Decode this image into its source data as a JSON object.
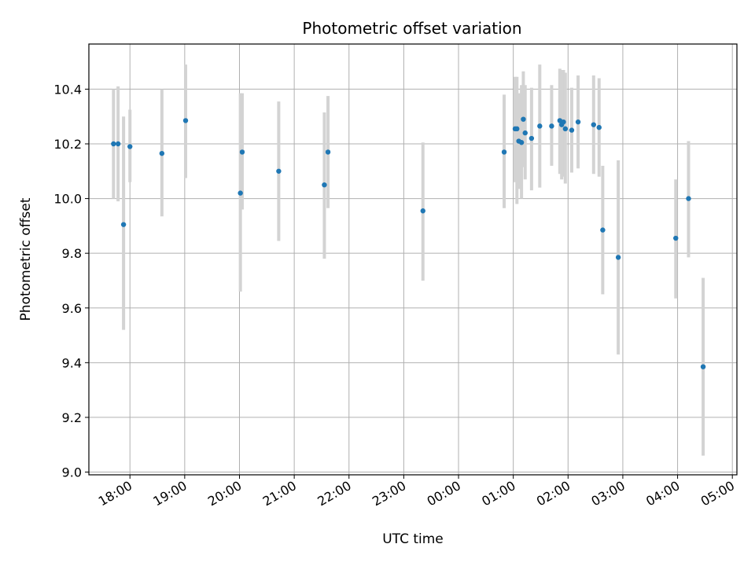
{
  "chart_data": {
    "type": "scatter",
    "title": "Photometric offset variation",
    "xlabel": "UTC time",
    "ylabel": "Photometric offset",
    "ylim": [
      8.99,
      10.565
    ],
    "xlim": [
      "17:15",
      "05:05"
    ],
    "grid": true,
    "x_ticks": [
      "18:00",
      "19:00",
      "20:00",
      "21:00",
      "22:00",
      "23:00",
      "00:00",
      "01:00",
      "02:00",
      "03:00",
      "04:00",
      "05:00"
    ],
    "y_ticks": [
      "9.0",
      "9.2",
      "9.4",
      "9.6",
      "9.8",
      "10.0",
      "10.2",
      "10.4"
    ],
    "marker_color": "#1f77b4",
    "errorbar_color": "#d3d3d3",
    "points": [
      {
        "x": "17:42",
        "y": 10.2,
        "err_low": 10.0,
        "err_high": 10.4
      },
      {
        "x": "17:47",
        "y": 10.2,
        "err_low": 9.99,
        "err_high": 10.41
      },
      {
        "x": "17:53",
        "y": 9.905,
        "err_low": 9.52,
        "err_high": 10.3
      },
      {
        "x": "18:00",
        "y": 10.19,
        "err_low": 10.06,
        "err_high": 10.325
      },
      {
        "x": "18:35",
        "y": 10.165,
        "err_low": 9.935,
        "err_high": 10.4
      },
      {
        "x": "19:01",
        "y": 10.285,
        "err_low": 10.075,
        "err_high": 10.49
      },
      {
        "x": "20:01",
        "y": 10.02,
        "err_low": 9.66,
        "err_high": 10.385
      },
      {
        "x": "20:03",
        "y": 10.17,
        "err_low": 9.96,
        "err_high": 10.385
      },
      {
        "x": "20:43",
        "y": 10.1,
        "err_low": 9.845,
        "err_high": 10.355
      },
      {
        "x": "21:33",
        "y": 10.05,
        "err_low": 9.78,
        "err_high": 10.315
      },
      {
        "x": "21:37",
        "y": 10.17,
        "err_low": 9.965,
        "err_high": 10.375
      },
      {
        "x": "23:21",
        "y": 9.955,
        "err_low": 9.7,
        "err_high": 10.205
      },
      {
        "x": "00:50",
        "y": 10.17,
        "err_low": 9.965,
        "err_high": 10.38
      },
      {
        "x": "01:02",
        "y": 10.255,
        "err_low": 10.06,
        "err_high": 10.445
      },
      {
        "x": "01:04",
        "y": 10.255,
        "err_low": 9.98,
        "err_high": 10.445
      },
      {
        "x": "01:06",
        "y": 10.21,
        "err_low": 10.035,
        "err_high": 10.385
      },
      {
        "x": "01:09",
        "y": 10.205,
        "err_low": 10.0,
        "err_high": 10.415
      },
      {
        "x": "01:11",
        "y": 10.29,
        "err_low": 10.115,
        "err_high": 10.465
      },
      {
        "x": "01:13",
        "y": 10.24,
        "err_low": 10.07,
        "err_high": 10.415
      },
      {
        "x": "01:20",
        "y": 10.22,
        "err_low": 10.03,
        "err_high": 10.405
      },
      {
        "x": "01:29",
        "y": 10.265,
        "err_low": 10.04,
        "err_high": 10.49
      },
      {
        "x": "01:42",
        "y": 10.265,
        "err_low": 10.12,
        "err_high": 10.415
      },
      {
        "x": "01:51",
        "y": 10.285,
        "err_low": 10.09,
        "err_high": 10.475
      },
      {
        "x": "01:53",
        "y": 10.27,
        "err_low": 10.07,
        "err_high": 10.47
      },
      {
        "x": "01:55",
        "y": 10.28,
        "err_low": 10.08,
        "err_high": 10.47
      },
      {
        "x": "01:57",
        "y": 10.255,
        "err_low": 10.055,
        "err_high": 10.46
      },
      {
        "x": "02:04",
        "y": 10.25,
        "err_low": 10.095,
        "err_high": 10.405
      },
      {
        "x": "02:11",
        "y": 10.28,
        "err_low": 10.11,
        "err_high": 10.45
      },
      {
        "x": "02:28",
        "y": 10.27,
        "err_low": 10.09,
        "err_high": 10.45
      },
      {
        "x": "02:34",
        "y": 10.26,
        "err_low": 10.08,
        "err_high": 10.44
      },
      {
        "x": "02:38",
        "y": 9.885,
        "err_low": 9.65,
        "err_high": 10.12
      },
      {
        "x": "02:55",
        "y": 9.785,
        "err_low": 9.43,
        "err_high": 10.14
      },
      {
        "x": "03:58",
        "y": 9.855,
        "err_low": 9.635,
        "err_high": 10.07
      },
      {
        "x": "04:12",
        "y": 10.0,
        "err_low": 9.785,
        "err_high": 10.21
      },
      {
        "x": "04:28",
        "y": 9.385,
        "err_low": 9.06,
        "err_high": 9.71
      }
    ]
  }
}
